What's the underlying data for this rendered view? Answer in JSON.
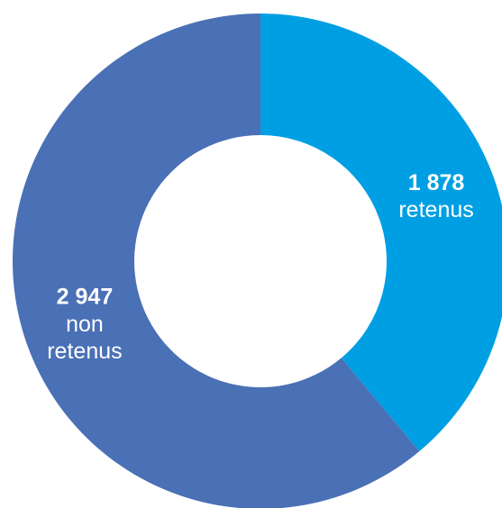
{
  "chart_data": {
    "type": "donut",
    "categories": [
      "retenus",
      "non retenus"
    ],
    "values": [
      1878,
      2947
    ],
    "value_labels": [
      "1 878",
      "2 947"
    ],
    "colors": [
      "#009fe3",
      "#4a70b6"
    ]
  }
}
